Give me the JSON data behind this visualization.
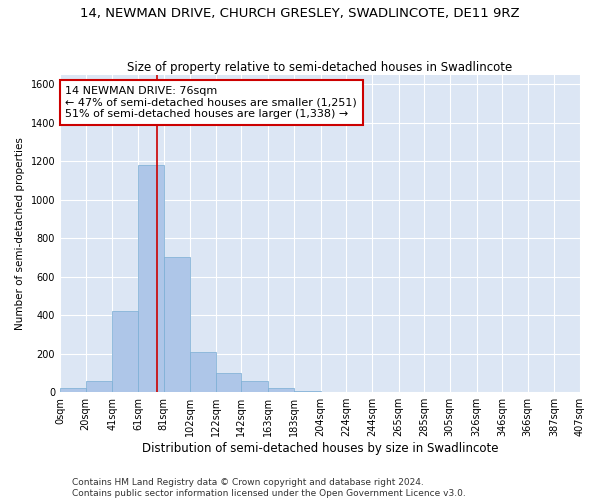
{
  "title": "14, NEWMAN DRIVE, CHURCH GRESLEY, SWADLINCOTE, DE11 9RZ",
  "subtitle": "Size of property relative to semi-detached houses in Swadlincote",
  "xlabel": "Distribution of semi-detached houses by size in Swadlincote",
  "ylabel": "Number of semi-detached properties",
  "footnote1": "Contains HM Land Registry data © Crown copyright and database right 2024.",
  "footnote2": "Contains public sector information licensed under the Open Government Licence v3.0.",
  "annotation_line1": "14 NEWMAN DRIVE: 76sqm",
  "annotation_line2": "← 47% of semi-detached houses are smaller (1,251)",
  "annotation_line3": "51% of semi-detached houses are larger (1,338) →",
  "property_size": 76,
  "bar_left_edges": [
    0,
    20,
    41,
    61,
    81,
    102,
    122,
    142,
    163,
    183,
    204,
    224,
    244,
    265,
    285,
    305,
    326,
    346,
    366,
    387
  ],
  "bar_heights": [
    20,
    60,
    420,
    1180,
    700,
    210,
    100,
    60,
    20,
    5,
    2,
    1,
    1,
    0,
    0,
    0,
    0,
    0,
    0,
    0
  ],
  "bar_widths": [
    20,
    21,
    20,
    20,
    21,
    20,
    20,
    21,
    20,
    21,
    20,
    20,
    21,
    20,
    20,
    21,
    20,
    20,
    21,
    20
  ],
  "bar_color": "#aec6e8",
  "bar_edgecolor": "#7aadd4",
  "vline_color": "#cc0000",
  "vline_x": 76,
  "annotation_box_edgecolor": "#cc0000",
  "ylim": [
    0,
    1650
  ],
  "yticks": [
    0,
    200,
    400,
    600,
    800,
    1000,
    1200,
    1400,
    1600
  ],
  "xlim": [
    0,
    407
  ],
  "bg_color": "#dce6f4",
  "grid_color": "#ffffff",
  "title_fontsize": 9.5,
  "subtitle_fontsize": 8.5,
  "xlabel_fontsize": 8.5,
  "ylabel_fontsize": 7.5,
  "tick_fontsize": 7,
  "annot_fontsize": 8,
  "footnote_fontsize": 6.5
}
